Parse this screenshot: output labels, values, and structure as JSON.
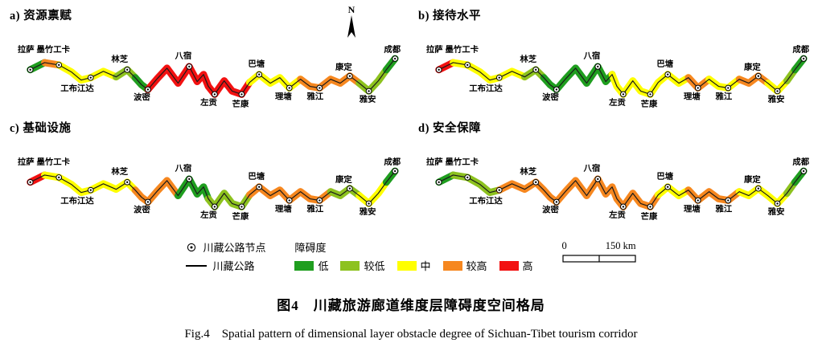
{
  "figure": {
    "caption_zh": "图4　川藏旅游廊道维度层障碍度空间格局",
    "caption_en": "Fig.4　Spatial pattern of dimensional layer obstacle degree of Sichuan-Tibet tourism corridor"
  },
  "north_arrow": {
    "label": "N"
  },
  "legend": {
    "node_label": "川藏公路节点",
    "road_label": "川藏公路",
    "degree_title": "障碍度",
    "classes": [
      {
        "key": "low",
        "label": "低",
        "color": "#1f9e1f"
      },
      {
        "key": "rel_low",
        "label": "较低",
        "color": "#8dc21f"
      },
      {
        "key": "mid",
        "label": "中",
        "color": "#ffff00"
      },
      {
        "key": "rel_high",
        "label": "较高",
        "color": "#f6871f"
      },
      {
        "key": "high",
        "label": "高",
        "color": "#f21111"
      }
    ]
  },
  "scalebar": {
    "zero": "0",
    "end": "150 km"
  },
  "chart_data": {
    "type": "map-corridor",
    "title": "川藏旅游廊道维度层障碍度空间格局",
    "route_points": [
      [
        28,
        82
      ],
      [
        46,
        73
      ],
      [
        64,
        76
      ],
      [
        80,
        85
      ],
      [
        92,
        95
      ],
      [
        104,
        92
      ],
      [
        120,
        84
      ],
      [
        136,
        91
      ],
      [
        150,
        82
      ],
      [
        160,
        92
      ],
      [
        168,
        101
      ],
      [
        176,
        107
      ],
      [
        188,
        93
      ],
      [
        200,
        80
      ],
      [
        214,
        99
      ],
      [
        228,
        78
      ],
      [
        238,
        97
      ],
      [
        246,
        88
      ],
      [
        252,
        103
      ],
      [
        260,
        113
      ],
      [
        272,
        96
      ],
      [
        282,
        109
      ],
      [
        294,
        113
      ],
      [
        304,
        98
      ],
      [
        316,
        88
      ],
      [
        330,
        99
      ],
      [
        342,
        92
      ],
      [
        354,
        105
      ],
      [
        368,
        94
      ],
      [
        380,
        103
      ],
      [
        392,
        105
      ],
      [
        406,
        94
      ],
      [
        418,
        99
      ],
      [
        430,
        90
      ],
      [
        442,
        99
      ],
      [
        454,
        109
      ],
      [
        466,
        96
      ],
      [
        476,
        82
      ],
      [
        487,
        68
      ]
    ],
    "cities": [
      {
        "name": "拉萨",
        "pt": 0,
        "label_offset": [
          -16,
          -22
        ]
      },
      {
        "name": "墨竹工卡",
        "pt": 2,
        "label_offset": [
          -28,
          -16
        ]
      },
      {
        "name": "工布江达",
        "pt": 5,
        "label_offset": [
          -38,
          17
        ]
      },
      {
        "name": "林芝",
        "pt": 8,
        "label_offset": [
          -20,
          -10
        ]
      },
      {
        "name": "波密",
        "pt": 11,
        "label_offset": [
          -18,
          13
        ]
      },
      {
        "name": "八宿",
        "pt": 15,
        "label_offset": [
          -18,
          -10
        ]
      },
      {
        "name": "左贡",
        "pt": 19,
        "label_offset": [
          -18,
          14
        ]
      },
      {
        "name": "芒康",
        "pt": 22,
        "label_offset": [
          -12,
          16
        ]
      },
      {
        "name": "巴塘",
        "pt": 24,
        "label_offset": [
          -14,
          -10
        ]
      },
      {
        "name": "理塘",
        "pt": 27,
        "label_offset": [
          -18,
          14
        ]
      },
      {
        "name": "雅江",
        "pt": 30,
        "label_offset": [
          -16,
          14
        ]
      },
      {
        "name": "康定",
        "pt": 33,
        "label_offset": [
          -18,
          -8
        ]
      },
      {
        "name": "雅安",
        "pt": 35,
        "label_offset": [
          -12,
          14
        ]
      },
      {
        "name": "成都",
        "pt": 38,
        "label_offset": [
          -14,
          -8
        ]
      }
    ],
    "panels": [
      {
        "id": "a",
        "title": "a) 资源禀赋",
        "segments": [
          {
            "level": "low",
            "from": 0,
            "to": 1
          },
          {
            "level": "rel_high",
            "from": 1,
            "to": 2
          },
          {
            "level": "mid",
            "from": 2,
            "to": 7
          },
          {
            "level": "rel_low",
            "from": 7,
            "to": 9
          },
          {
            "level": "low",
            "from": 9,
            "to": 11
          },
          {
            "level": "high",
            "from": 11,
            "to": 23
          },
          {
            "level": "mid",
            "from": 23,
            "to": 28
          },
          {
            "level": "rel_high",
            "from": 28,
            "to": 34
          },
          {
            "level": "rel_low",
            "from": 34,
            "to": 37
          },
          {
            "level": "low",
            "from": 37,
            "to": 38
          }
        ]
      },
      {
        "id": "b",
        "title": "b) 接待水平",
        "segments": [
          {
            "level": "high",
            "from": 0,
            "to": 1
          },
          {
            "level": "mid",
            "from": 1,
            "to": 7
          },
          {
            "level": "rel_low",
            "from": 7,
            "to": 9
          },
          {
            "level": "low",
            "from": 9,
            "to": 17
          },
          {
            "level": "mid",
            "from": 17,
            "to": 26
          },
          {
            "level": "rel_high",
            "from": 26,
            "to": 28
          },
          {
            "level": "mid",
            "from": 28,
            "to": 31
          },
          {
            "level": "rel_high",
            "from": 31,
            "to": 34
          },
          {
            "level": "mid",
            "from": 34,
            "to": 36
          },
          {
            "level": "rel_low",
            "from": 36,
            "to": 37
          },
          {
            "level": "low",
            "from": 37,
            "to": 38
          }
        ]
      },
      {
        "id": "c",
        "title": "c) 基础设施",
        "segments": [
          {
            "level": "high",
            "from": 0,
            "to": 1
          },
          {
            "level": "mid",
            "from": 1,
            "to": 9
          },
          {
            "level": "rel_high",
            "from": 9,
            "to": 14
          },
          {
            "level": "low",
            "from": 14,
            "to": 18
          },
          {
            "level": "rel_low",
            "from": 18,
            "to": 23
          },
          {
            "level": "rel_high",
            "from": 23,
            "to": 31
          },
          {
            "level": "rel_low",
            "from": 31,
            "to": 34
          },
          {
            "level": "mid",
            "from": 34,
            "to": 37
          },
          {
            "level": "low",
            "from": 37,
            "to": 38
          }
        ]
      },
      {
        "id": "d",
        "title": "d) 安全保障",
        "segments": [
          {
            "level": "low",
            "from": 0,
            "to": 1
          },
          {
            "level": "rel_low",
            "from": 1,
            "to": 5
          },
          {
            "level": "rel_high",
            "from": 5,
            "to": 23
          },
          {
            "level": "mid",
            "from": 23,
            "to": 26
          },
          {
            "level": "rel_high",
            "from": 26,
            "to": 31
          },
          {
            "level": "mid",
            "from": 31,
            "to": 36
          },
          {
            "level": "rel_low",
            "from": 36,
            "to": 37
          },
          {
            "level": "low",
            "from": 37,
            "to": 38
          }
        ]
      }
    ]
  }
}
